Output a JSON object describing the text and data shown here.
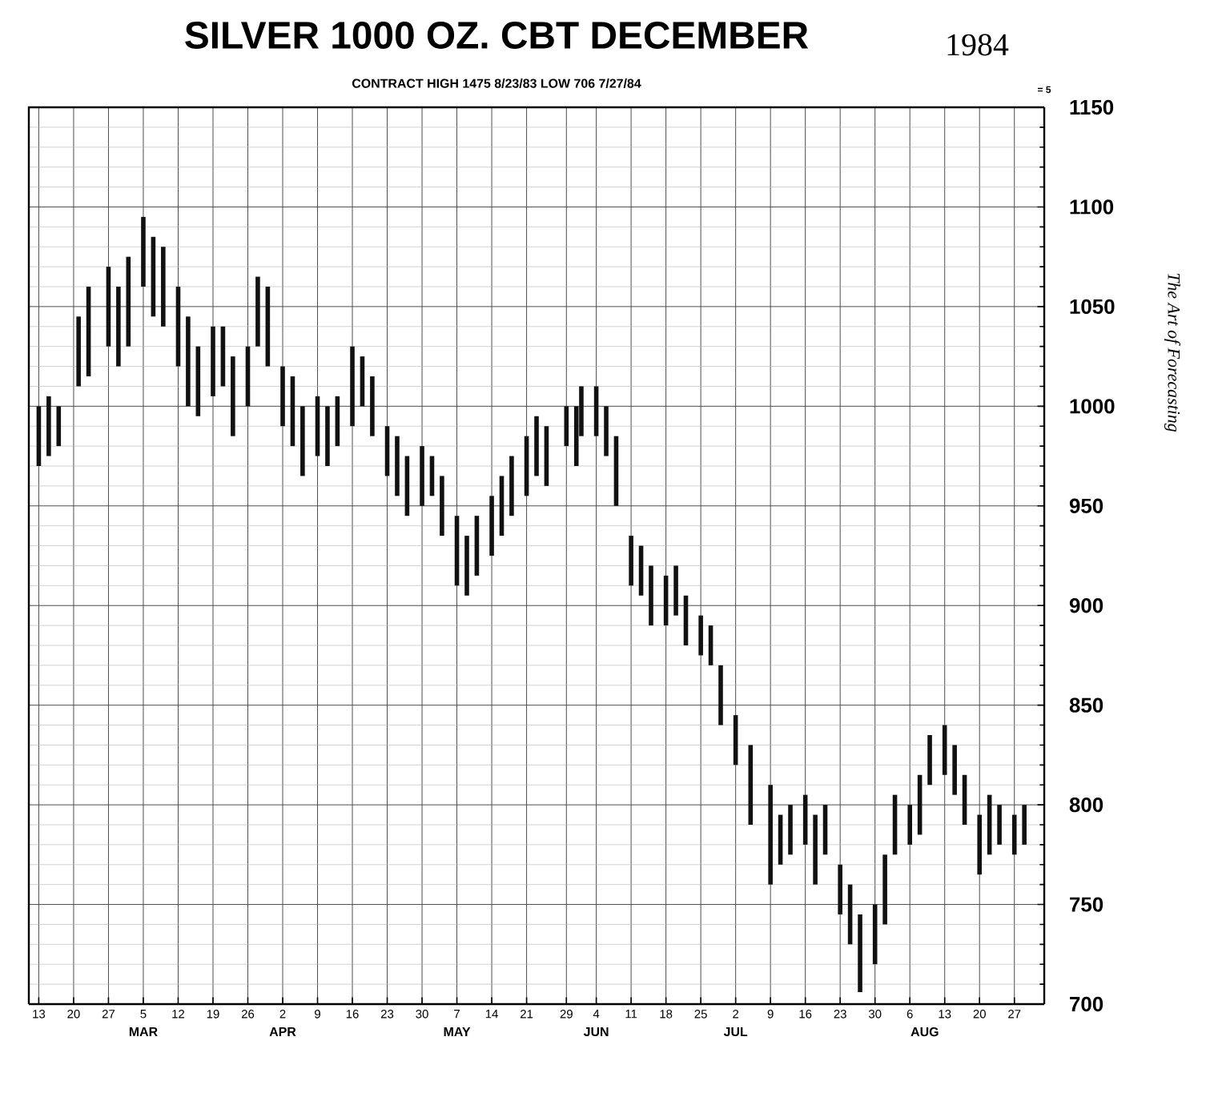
{
  "chart_data": {
    "type": "bar",
    "title": "SILVER 1000 OZ. CBT DECEMBER",
    "subtitle": "CONTRACT HIGH 1475 8/23/83 LOW 706 7/27/84",
    "annotations": [
      "1984",
      "= 5",
      "The Art of Forecasting"
    ],
    "x": [
      "1984-02-13",
      "1984-02-15",
      "1984-02-17",
      "1984-02-21",
      "1984-02-23",
      "1984-02-27",
      "1984-02-29",
      "1984-03-02",
      "1984-03-05",
      "1984-03-07",
      "1984-03-09",
      "1984-03-12",
      "1984-03-14",
      "1984-03-16",
      "1984-03-19",
      "1984-03-21",
      "1984-03-23",
      "1984-03-26",
      "1984-03-28",
      "1984-03-30",
      "1984-04-02",
      "1984-04-04",
      "1984-04-06",
      "1984-04-09",
      "1984-04-11",
      "1984-04-13",
      "1984-04-16",
      "1984-04-18",
      "1984-04-20",
      "1984-04-23",
      "1984-04-25",
      "1984-04-27",
      "1984-04-30",
      "1984-05-02",
      "1984-05-04",
      "1984-05-07",
      "1984-05-09",
      "1984-05-11",
      "1984-05-14",
      "1984-05-16",
      "1984-05-18",
      "1984-05-21",
      "1984-05-23",
      "1984-05-25",
      "1984-05-29",
      "1984-05-31",
      "1984-06-01",
      "1984-06-04",
      "1984-06-06",
      "1984-06-08",
      "1984-06-11",
      "1984-06-13",
      "1984-06-15",
      "1984-06-18",
      "1984-06-20",
      "1984-06-22",
      "1984-06-25",
      "1984-06-27",
      "1984-06-29",
      "1984-07-02",
      "1984-07-05",
      "1984-07-09",
      "1984-07-11",
      "1984-07-13",
      "1984-07-16",
      "1984-07-18",
      "1984-07-20",
      "1984-07-23",
      "1984-07-25",
      "1984-07-27",
      "1984-07-30",
      "1984-08-01",
      "1984-08-03",
      "1984-08-06",
      "1984-08-08",
      "1984-08-10",
      "1984-08-13",
      "1984-08-15",
      "1984-08-17",
      "1984-08-20",
      "1984-08-22",
      "1984-08-24",
      "1984-08-27",
      "1984-08-29"
    ],
    "base": [
      970,
      975,
      980,
      1010,
      1015,
      1030,
      1020,
      1030,
      1060,
      1045,
      1040,
      1020,
      1000,
      995,
      1005,
      1010,
      985,
      1000,
      1030,
      1020,
      990,
      980,
      965,
      975,
      970,
      980,
      990,
      1000,
      985,
      965,
      955,
      945,
      950,
      955,
      935,
      910,
      905,
      915,
      925,
      935,
      945,
      955,
      965,
      960,
      980,
      970,
      985,
      985,
      975,
      950,
      910,
      905,
      890,
      890,
      895,
      880,
      875,
      870,
      840,
      820,
      790,
      760,
      770,
      775,
      780,
      760,
      775,
      745,
      730,
      706,
      720,
      740,
      775,
      780,
      785,
      810,
      815,
      805,
      790,
      765,
      775,
      780,
      775,
      780
    ],
    "values": [
      30,
      30,
      20,
      35,
      45,
      40,
      40,
      45,
      35,
      40,
      40,
      40,
      45,
      35,
      35,
      30,
      40,
      30,
      35,
      40,
      30,
      35,
      35,
      30,
      30,
      25,
      40,
      25,
      30,
      25,
      30,
      30,
      30,
      20,
      30,
      35,
      30,
      30,
      30,
      30,
      30,
      30,
      30,
      30,
      20,
      30,
      25,
      25,
      25,
      35,
      25,
      25,
      30,
      25,
      25,
      25,
      20,
      20,
      30,
      25,
      40,
      50,
      25,
      25,
      25,
      35,
      25,
      25,
      30,
      39,
      30,
      35,
      30,
      20,
      30,
      25,
      25,
      25,
      25,
      30,
      30,
      20,
      20,
      20
    ],
    "color": "#111111",
    "xlim": [
      "1984-02-11",
      "1984-09-02"
    ],
    "xticks": [
      {
        "value": "1984-02-13",
        "label": "13"
      },
      {
        "value": "1984-02-20",
        "label": "20"
      },
      {
        "value": "1984-02-27",
        "label": "27"
      },
      {
        "value": "1984-03-05",
        "label": "5"
      },
      {
        "value": "1984-03-12",
        "label": "12"
      },
      {
        "value": "1984-03-19",
        "label": "19"
      },
      {
        "value": "1984-03-26",
        "label": "26"
      },
      {
        "value": "1984-04-02",
        "label": "2"
      },
      {
        "value": "1984-04-09",
        "label": "9"
      },
      {
        "value": "1984-04-16",
        "label": "16"
      },
      {
        "value": "1984-04-23",
        "label": "23"
      },
      {
        "value": "1984-04-30",
        "label": "30"
      },
      {
        "value": "1984-05-07",
        "label": "7"
      },
      {
        "value": "1984-05-14",
        "label": "14"
      },
      {
        "value": "1984-05-21",
        "label": "21"
      },
      {
        "value": "1984-05-29",
        "label": "29"
      },
      {
        "value": "1984-06-04",
        "label": "4"
      },
      {
        "value": "1984-06-11",
        "label": "11"
      },
      {
        "value": "1984-06-18",
        "label": "18"
      },
      {
        "value": "1984-06-25",
        "label": "25"
      },
      {
        "value": "1984-07-02",
        "label": "2"
      },
      {
        "value": "1984-07-09",
        "label": "9"
      },
      {
        "value": "1984-07-16",
        "label": "16"
      },
      {
        "value": "1984-07-23",
        "label": "23"
      },
      {
        "value": "1984-07-30",
        "label": "30"
      },
      {
        "value": "1984-08-06",
        "label": "6"
      },
      {
        "value": "1984-08-13",
        "label": "13"
      },
      {
        "value": "1984-08-20",
        "label": "20"
      },
      {
        "value": "1984-08-27",
        "label": "27"
      }
    ],
    "x2lim": [
      "1984-02-11",
      "1984-09-02"
    ],
    "x2ticks": [
      {
        "value": "1984-03-05",
        "label": "MAR"
      },
      {
        "value": "1984-04-02",
        "label": "APR"
      },
      {
        "value": "1984-05-07",
        "label": "MAY"
      },
      {
        "value": "1984-06-04",
        "label": "JUN"
      },
      {
        "value": "1984-07-02",
        "label": "JUL"
      },
      {
        "value": "1984-08-09",
        "label": "AUG"
      }
    ],
    "ylim": [
      700,
      1150
    ],
    "yticks": [
      700,
      750,
      800,
      850,
      900,
      950,
      1000,
      1050,
      1100,
      1150
    ],
    "grid": true
  }
}
